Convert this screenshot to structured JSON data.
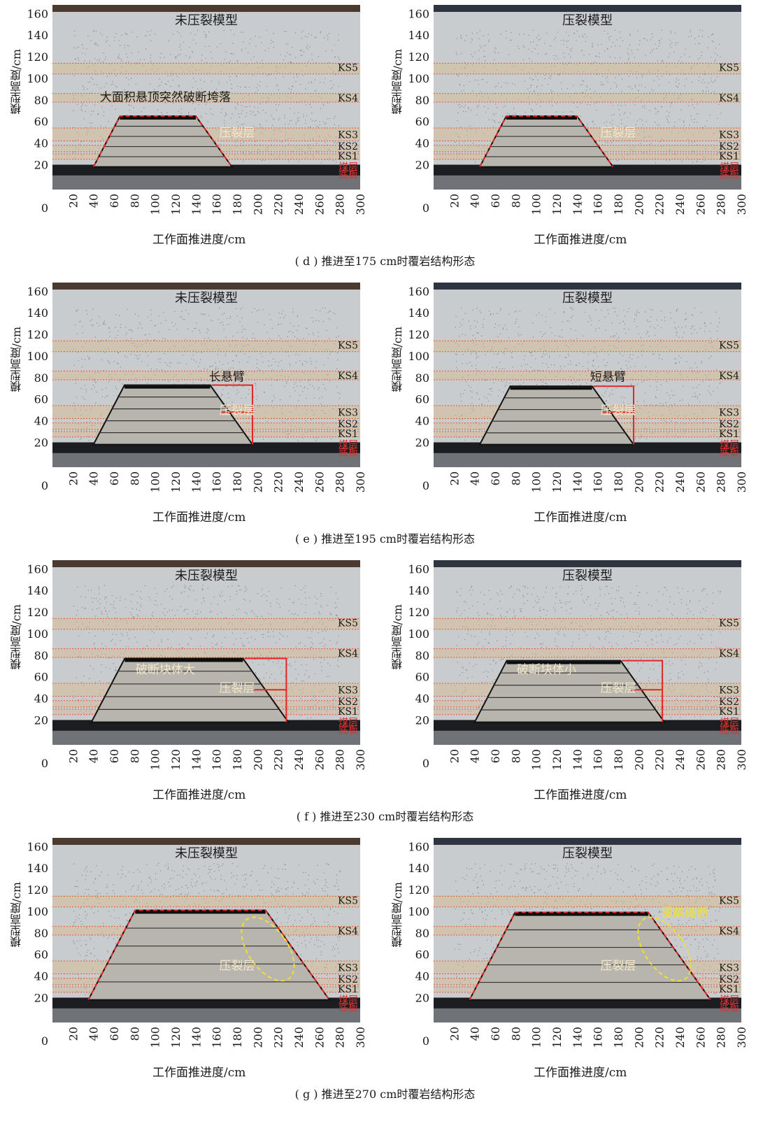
{
  "figure": {
    "rows": [
      {
        "caption": "( d ) 推进至175 cm时覆岩结构形态",
        "panels": [
          {
            "title": "未压裂模型",
            "annotations": [
              {
                "text": "大面积悬顶突然破断垮落",
                "color": "#1a1a1a"
              },
              {
                "text": "压裂层",
                "color": "#f4e6c8"
              }
            ],
            "cave_top": 65,
            "cave_left": 40,
            "cave_right": 175
          },
          {
            "title": "压裂模型",
            "annotations": [
              {
                "text": "压裂层",
                "color": "#f4e6c8"
              }
            ],
            "cave_top": 65,
            "cave_left": 45,
            "cave_right": 175
          }
        ]
      },
      {
        "caption": "( e ) 推进至195 cm时覆岩结构形态",
        "panels": [
          {
            "title": "未压裂模型",
            "annotations": [
              {
                "text": "长悬臂",
                "color": "#1a1a1a"
              },
              {
                "text": "压裂层",
                "color": "#f4e6c8"
              }
            ],
            "cave_top": 73,
            "cave_left": 40,
            "cave_right": 195
          },
          {
            "title": "压裂模型",
            "annotations": [
              {
                "text": "短悬臂",
                "color": "#1a1a1a"
              },
              {
                "text": "压裂层",
                "color": "#f4e6c8"
              }
            ],
            "cave_top": 72,
            "cave_left": 45,
            "cave_right": 195
          }
        ]
      },
      {
        "caption": "( f ) 推进至230 cm时覆岩结构形态",
        "panels": [
          {
            "title": "未压裂模型",
            "annotations": [
              {
                "text": "破断块体大",
                "color": "#f4e6c8"
              },
              {
                "text": "压裂层",
                "color": "#f4e6c8"
              }
            ],
            "cave_top": 77,
            "cave_left": 38,
            "cave_right": 230
          },
          {
            "title": "压裂模型",
            "annotations": [
              {
                "text": "破断块体小",
                "color": "#f4e6c8"
              },
              {
                "text": "压裂层",
                "color": "#f4e6c8"
              }
            ],
            "cave_top": 75,
            "cave_left": 40,
            "cave_right": 225
          }
        ]
      },
      {
        "caption": "( g ) 推进至270 cm时覆岩结构形态",
        "panels": [
          {
            "title": "未压裂模型",
            "annotations": [
              {
                "text": "压裂层",
                "color": "#f4e6c8"
              }
            ],
            "cave_top": 101,
            "cave_left": 35,
            "cave_right": 270
          },
          {
            "title": "压裂模型",
            "annotations": [
              {
                "text": "提前破断",
                "color": "#f0e030"
              },
              {
                "text": "压裂层",
                "color": "#f4e6c8"
              }
            ],
            "cave_top": 99,
            "cave_left": 35,
            "cave_right": 270
          }
        ]
      }
    ],
    "axes": {
      "ylabel": "模型高度/cm",
      "xlabel": "工作面推进度/cm",
      "yticks": [
        "0",
        "20",
        "40",
        "60",
        "80",
        "100",
        "120",
        "140",
        "160"
      ],
      "xticks": [
        "20",
        "40",
        "60",
        "80",
        "100",
        "120",
        "140",
        "160",
        "180",
        "200",
        "220",
        "240",
        "260",
        "280",
        "300"
      ]
    },
    "layers": [
      {
        "label": "KS5",
        "value": 110,
        "color": "#1a1a1a"
      },
      {
        "label": "KS4",
        "value": 82,
        "color": "#1a1a1a"
      },
      {
        "label": "KS3",
        "value": 48,
        "color": "#1a1a1a"
      },
      {
        "label": "KS2",
        "value": 37,
        "color": "#1a1a1a"
      },
      {
        "label": "KS1",
        "value": 28,
        "color": "#1a1a1a"
      },
      {
        "label": "煤层",
        "value": 18,
        "color": "#e03030"
      },
      {
        "label": "底板",
        "value": 11,
        "color": "#e03030"
      }
    ],
    "colors": {
      "photo_bg": "#c9ccce",
      "coal": "#1c1d20",
      "red_line": "#e02828",
      "band": "#d9b98c"
    }
  }
}
